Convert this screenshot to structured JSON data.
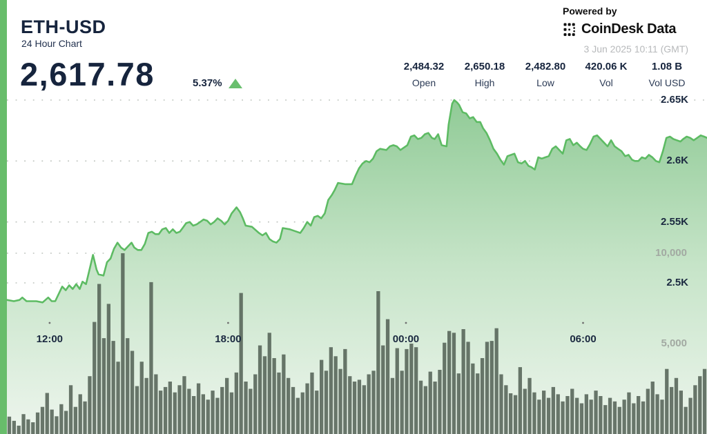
{
  "header": {
    "symbol": "ETH-USD",
    "subtitle": "24 Hour Chart",
    "price": "2,617.78",
    "change_pct": "5.37%",
    "change_direction": "up"
  },
  "branding": {
    "powered_by": "Powered by",
    "brand_name": "CoinDesk Data",
    "timestamp": "3 Jun 2025 10:11 (GMT)"
  },
  "stats": [
    {
      "value": "2,484.32",
      "label": "Open"
    },
    {
      "value": "2,650.18",
      "label": "High"
    },
    {
      "value": "2,482.80",
      "label": "Low"
    },
    {
      "value": "420.06 K",
      "label": "Vol"
    },
    {
      "value": "1.08 B",
      "label": "Vol USD"
    }
  ],
  "colors": {
    "accent_green": "#68bd6b",
    "line_green": "#5dbb63",
    "area_top": "#8fca95",
    "area_mid": "#c6e4c8",
    "area_bottom": "#edf5ed",
    "volume_bar": "#515f54",
    "grid": "#bcc2bc",
    "dark_text": "#16243d",
    "muted_text": "#a2a9a2"
  },
  "chart_data": {
    "type": "area+bar",
    "title": "ETH-USD 24 Hour Chart",
    "legend": "none",
    "grid": "dotted-horizontal",
    "price_axis": {
      "side": "right",
      "range": [
        2470,
        2660
      ],
      "ticks": [
        {
          "label": "2.65K",
          "value": 2650
        },
        {
          "label": "2.6K",
          "value": 2600
        },
        {
          "label": "2.55K",
          "value": 2550
        },
        {
          "label": "2.5K",
          "value": 2500
        }
      ]
    },
    "volume_axis": {
      "side": "right",
      "range": [
        0,
        10000
      ],
      "ticks": [
        {
          "label": "10,000",
          "value": 10000
        },
        {
          "label": "5,000",
          "value": 5000
        }
      ]
    },
    "time_axis": {
      "ticks": [
        {
          "label": "12:00",
          "f": 0.061
        },
        {
          "label": "18:00",
          "f": 0.316
        },
        {
          "label": "00:00",
          "f": 0.57
        },
        {
          "label": "06:00",
          "f": 0.823
        }
      ]
    },
    "price_series": [
      [
        0,
        2486
      ],
      [
        0.01,
        2485
      ],
      [
        0.018,
        2486
      ],
      [
        0.022,
        2488
      ],
      [
        0.028,
        2485
      ],
      [
        0.036,
        2485
      ],
      [
        0.042,
        2485
      ],
      [
        0.051,
        2484
      ],
      [
        0.059,
        2488
      ],
      [
        0.064,
        2485
      ],
      [
        0.069,
        2485
      ],
      [
        0.079,
        2497
      ],
      [
        0.084,
        2494
      ],
      [
        0.089,
        2498
      ],
      [
        0.094,
        2495
      ],
      [
        0.099,
        2499
      ],
      [
        0.104,
        2495
      ],
      [
        0.108,
        2501
      ],
      [
        0.113,
        2499
      ],
      [
        0.118,
        2511
      ],
      [
        0.123,
        2523
      ],
      [
        0.128,
        2511
      ],
      [
        0.131,
        2507
      ],
      [
        0.138,
        2506
      ],
      [
        0.143,
        2517
      ],
      [
        0.148,
        2520
      ],
      [
        0.153,
        2528
      ],
      [
        0.158,
        2533
      ],
      [
        0.163,
        2529
      ],
      [
        0.168,
        2527
      ],
      [
        0.173,
        2530
      ],
      [
        0.178,
        2533
      ],
      [
        0.182,
        2529
      ],
      [
        0.187,
        2527
      ],
      [
        0.192,
        2527
      ],
      [
        0.197,
        2532
      ],
      [
        0.202,
        2541
      ],
      [
        0.207,
        2542
      ],
      [
        0.212,
        2540
      ],
      [
        0.217,
        2540
      ],
      [
        0.222,
        2544
      ],
      [
        0.227,
        2545
      ],
      [
        0.232,
        2541
      ],
      [
        0.237,
        2544
      ],
      [
        0.242,
        2541
      ],
      [
        0.247,
        2542
      ],
      [
        0.251,
        2545
      ],
      [
        0.256,
        2549
      ],
      [
        0.261,
        2550
      ],
      [
        0.266,
        2547
      ],
      [
        0.271,
        2548
      ],
      [
        0.276,
        2550
      ],
      [
        0.281,
        2552
      ],
      [
        0.286,
        2551
      ],
      [
        0.291,
        2548
      ],
      [
        0.296,
        2550
      ],
      [
        0.301,
        2553
      ],
      [
        0.306,
        2551
      ],
      [
        0.311,
        2548
      ],
      [
        0.316,
        2551
      ],
      [
        0.321,
        2557
      ],
      [
        0.328,
        2562
      ],
      [
        0.333,
        2558
      ],
      [
        0.337,
        2553
      ],
      [
        0.341,
        2547
      ],
      [
        0.35,
        2546
      ],
      [
        0.36,
        2541
      ],
      [
        0.365,
        2539
      ],
      [
        0.37,
        2541
      ],
      [
        0.375,
        2536
      ],
      [
        0.38,
        2534
      ],
      [
        0.385,
        2533
      ],
      [
        0.39,
        2536
      ],
      [
        0.394,
        2545
      ],
      [
        0.404,
        2544
      ],
      [
        0.414,
        2542
      ],
      [
        0.419,
        2541
      ],
      [
        0.424,
        2545
      ],
      [
        0.429,
        2550
      ],
      [
        0.434,
        2547
      ],
      [
        0.439,
        2554
      ],
      [
        0.444,
        2555
      ],
      [
        0.449,
        2553
      ],
      [
        0.454,
        2557
      ],
      [
        0.459,
        2568
      ],
      [
        0.464,
        2572
      ],
      [
        0.468,
        2576
      ],
      [
        0.473,
        2582
      ],
      [
        0.483,
        2581
      ],
      [
        0.493,
        2581
      ],
      [
        0.498,
        2588
      ],
      [
        0.503,
        2594
      ],
      [
        0.508,
        2598
      ],
      [
        0.513,
        2600
      ],
      [
        0.518,
        2599
      ],
      [
        0.523,
        2602
      ],
      [
        0.528,
        2608
      ],
      [
        0.533,
        2610
      ],
      [
        0.542,
        2609
      ],
      [
        0.547,
        2612
      ],
      [
        0.552,
        2613
      ],
      [
        0.557,
        2612
      ],
      [
        0.562,
        2609
      ],
      [
        0.572,
        2613
      ],
      [
        0.577,
        2620
      ],
      [
        0.582,
        2621
      ],
      [
        0.587,
        2618
      ],
      [
        0.592,
        2619
      ],
      [
        0.597,
        2622
      ],
      [
        0.602,
        2623
      ],
      [
        0.607,
        2619
      ],
      [
        0.611,
        2618
      ],
      [
        0.616,
        2622
      ],
      [
        0.621,
        2613
      ],
      [
        0.628,
        2612
      ],
      [
        0.631,
        2630
      ],
      [
        0.636,
        2647
      ],
      [
        0.639,
        2650
      ],
      [
        0.643,
        2648
      ],
      [
        0.646,
        2646
      ],
      [
        0.651,
        2640
      ],
      [
        0.656,
        2639
      ],
      [
        0.661,
        2635
      ],
      [
        0.666,
        2636
      ],
      [
        0.671,
        2632
      ],
      [
        0.676,
        2632
      ],
      [
        0.68,
        2627
      ],
      [
        0.685,
        2623
      ],
      [
        0.69,
        2617
      ],
      [
        0.695,
        2610
      ],
      [
        0.7,
        2606
      ],
      [
        0.705,
        2601
      ],
      [
        0.71,
        2597
      ],
      [
        0.715,
        2604
      ],
      [
        0.72,
        2605
      ],
      [
        0.725,
        2606
      ],
      [
        0.73,
        2599
      ],
      [
        0.735,
        2598
      ],
      [
        0.74,
        2600
      ],
      [
        0.745,
        2596
      ],
      [
        0.749,
        2595
      ],
      [
        0.754,
        2593
      ],
      [
        0.759,
        2603
      ],
      [
        0.764,
        2602
      ],
      [
        0.769,
        2603
      ],
      [
        0.774,
        2604
      ],
      [
        0.779,
        2610
      ],
      [
        0.784,
        2612
      ],
      [
        0.789,
        2609
      ],
      [
        0.794,
        2606
      ],
      [
        0.799,
        2617
      ],
      [
        0.804,
        2618
      ],
      [
        0.809,
        2613
      ],
      [
        0.814,
        2615
      ],
      [
        0.819,
        2612
      ],
      [
        0.823,
        2610
      ],
      [
        0.828,
        2609
      ],
      [
        0.833,
        2614
      ],
      [
        0.838,
        2620
      ],
      [
        0.843,
        2621
      ],
      [
        0.848,
        2618
      ],
      [
        0.853,
        2615
      ],
      [
        0.858,
        2612
      ],
      [
        0.863,
        2617
      ],
      [
        0.868,
        2612
      ],
      [
        0.873,
        2610
      ],
      [
        0.878,
        2608
      ],
      [
        0.883,
        2604
      ],
      [
        0.888,
        2605
      ],
      [
        0.893,
        2601
      ],
      [
        0.897,
        2600
      ],
      [
        0.902,
        2600
      ],
      [
        0.907,
        2603
      ],
      [
        0.912,
        2602
      ],
      [
        0.917,
        2605
      ],
      [
        0.922,
        2603
      ],
      [
        0.927,
        2600
      ],
      [
        0.932,
        2599
      ],
      [
        0.937,
        2608
      ],
      [
        0.942,
        2619
      ],
      [
        0.947,
        2620
      ],
      [
        0.952,
        2618
      ],
      [
        0.957,
        2617
      ],
      [
        0.962,
        2616
      ],
      [
        0.966,
        2618
      ],
      [
        0.971,
        2620
      ],
      [
        0.976,
        2619
      ],
      [
        0.981,
        2617
      ],
      [
        0.986,
        2619
      ],
      [
        0.991,
        2621
      ],
      [
        0.996,
        2620
      ],
      [
        1,
        2619
      ]
    ],
    "volume_series": [
      960,
      730,
      460,
      1100,
      810,
      650,
      1190,
      1500,
      2270,
      1350,
      980,
      1650,
      1280,
      2700,
      1500,
      2200,
      1800,
      3200,
      6200,
      8300,
      5300,
      7200,
      5150,
      4000,
      10000,
      5300,
      4600,
      2650,
      4000,
      3100,
      8400,
      3300,
      2400,
      2600,
      2900,
      2300,
      2700,
      3200,
      2500,
      2100,
      2800,
      2200,
      1900,
      2400,
      2000,
      2600,
      3100,
      2300,
      3400,
      7800,
      2900,
      2500,
      3300,
      4900,
      4300,
      5600,
      4200,
      3400,
      4400,
      3100,
      2600,
      2000,
      2300,
      2800,
      3400,
      2400,
      4100,
      3500,
      4800,
      4300,
      3600,
      4700,
      3200,
      2900,
      3000,
      2700,
      3300,
      3500,
      7900,
      4900,
      6350,
      3100,
      4750,
      3500,
      4700,
      5000,
      4800,
      2950,
      2650,
      3450,
      2900,
      3550,
      5050,
      5700,
      5600,
      3350,
      5800,
      5100,
      3900,
      3350,
      4200,
      5100,
      5150,
      5850,
      3300,
      2700,
      2250,
      2150,
      3700,
      2500,
      3100,
      2300,
      1900,
      2400,
      2000,
      2600,
      2200,
      1800,
      2100,
      2500,
      2000,
      1700,
      2200,
      1900,
      2400,
      2100,
      1600,
      2000,
      1800,
      1500,
      1900,
      2300,
      1700,
      2100,
      1800,
      2500,
      2900,
      2200,
      1900,
      3600,
      2600,
      3100,
      2400,
      1500,
      2000,
      2700,
      3200,
      3600
    ]
  }
}
